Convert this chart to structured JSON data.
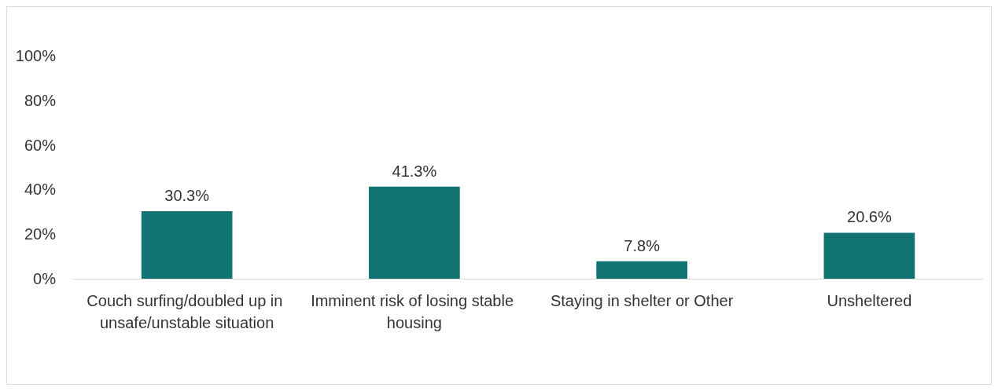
{
  "chart_data": {
    "type": "bar",
    "categories": [
      "Couch surfing/doubled up in unsafe/unstable situation",
      "Imminent risk of losing stable housing",
      "Staying in shelter or Other",
      "Unsheltered"
    ],
    "values": [
      30.3,
      41.3,
      7.8,
      20.6
    ],
    "color": "#127373",
    "value_labels": [
      "30.3%",
      "41.3%",
      "7.8%",
      "20.6%"
    ],
    "grid": false,
    "ylim": [
      0,
      100
    ],
    "yticks": [
      {
        "value": 0,
        "label": "0%"
      },
      {
        "value": 20,
        "label": "20%"
      },
      {
        "value": 40,
        "label": "40%"
      },
      {
        "value": 60,
        "label": "60%"
      },
      {
        "value": 80,
        "label": "80%"
      },
      {
        "value": 100,
        "label": "100%"
      }
    ]
  }
}
